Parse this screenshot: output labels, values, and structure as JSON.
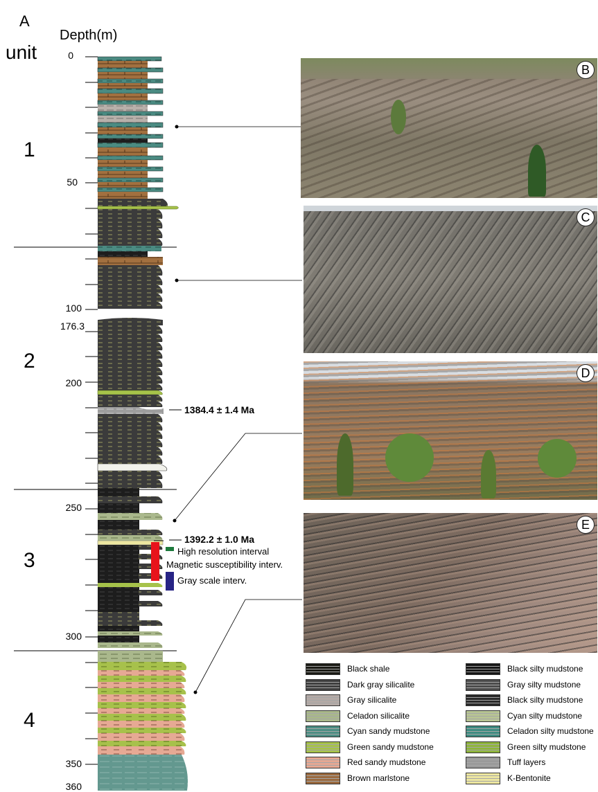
{
  "panel_label": "A",
  "depth_label": "Depth(m)",
  "unit_label": "unit",
  "units": [
    "1",
    "2",
    "3",
    "4"
  ],
  "depth_ticks": [
    "0",
    "50",
    "100",
    "176.3",
    "200",
    "250",
    "300",
    "350",
    "360"
  ],
  "ages": [
    "1384.4 ± 1.4 Ma",
    "1392.2 ± 1.0 Ma"
  ],
  "intervals": {
    "high_res": "High resolution interval",
    "mag_sus": "Magnetic susceptibility interv.",
    "gray_scale": "Gray scale interv."
  },
  "photos": [
    "B",
    "C",
    "D",
    "E"
  ],
  "legend": [
    {
      "label": "Black shale",
      "color": "#1a1a14"
    },
    {
      "label": "Black silty mudstone",
      "color": "#161616"
    },
    {
      "label": "Dark gray silicalite",
      "color": "#3f3f3f"
    },
    {
      "label": "Gray silty mudstone",
      "color": "#4c4c4c"
    },
    {
      "label": "Gray silicalite",
      "color": "#b4aaa6"
    },
    {
      "label": "Black silty mudstone",
      "color": "#2a2a2a"
    },
    {
      "label": "Celadon silicalite",
      "color": "#a9b88a"
    },
    {
      "label": "Cyan silty mudstone",
      "color": "#b7c493"
    },
    {
      "label": "Cyan sandy mudstone",
      "color": "#4c8e84"
    },
    {
      "label": "Celadon silty mudstone",
      "color": "#3e8c82"
    },
    {
      "label": "Green sandy mudstone",
      "color": "#a6c24a"
    },
    {
      "label": "Green silty mudstone",
      "color": "#8fb53c"
    },
    {
      "label": "Red sandy mudstone",
      "color": "#e5a792"
    },
    {
      "label": "Tuff layers",
      "color": "#9a9a9a"
    },
    {
      "label": "Brown marlstone",
      "color": "#9a6a3e"
    },
    {
      "label": "K-Bentonite",
      "color": "#ece6a0"
    }
  ]
}
